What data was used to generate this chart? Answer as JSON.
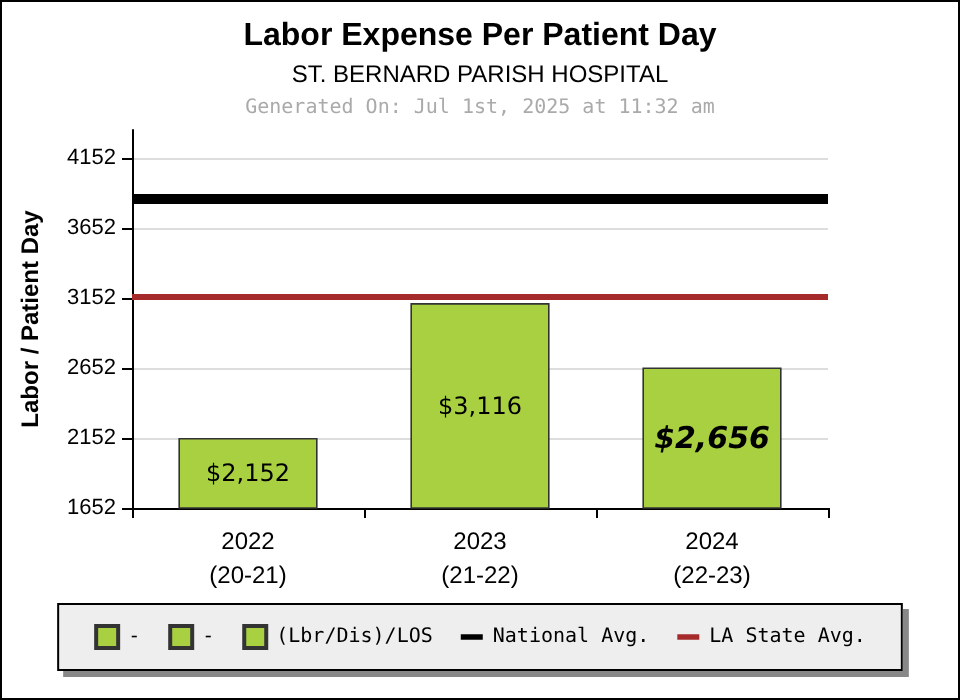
{
  "chart_data": {
    "type": "bar",
    "title": "Labor Expense Per Patient Day",
    "subtitle": "ST. BERNARD PARISH HOSPITAL",
    "annotations": [
      "Generated On: Jul 1st, 2025 at 11:32 am"
    ],
    "ylabel": "Labor / Patient Day",
    "categories": [
      "2022\n(20-21)",
      "2023\n(21-22)",
      "2024\n(22-23)"
    ],
    "series": [
      {
        "name": "-",
        "color": "#a8d040",
        "values": [
          2152,
          null,
          null
        ],
        "value_labels": [
          "$2,152",
          null,
          null
        ]
      },
      {
        "name": "-",
        "color": "#a8d040",
        "values": [
          null,
          3116,
          null
        ],
        "value_labels": [
          null,
          "$3,116",
          null
        ]
      },
      {
        "name": "(Lbr/Dis)/LOS",
        "color": "#a8d040",
        "values": [
          null,
          null,
          2656
        ],
        "value_labels": [
          null,
          null,
          "$2,656"
        ]
      }
    ],
    "ylim": [
      1652,
      4352
    ],
    "yticks": [
      1652,
      2152,
      2652,
      3152,
      3652,
      4152
    ],
    "ref_lines": [
      {
        "axis": "y",
        "value": 3860,
        "label": "National Avg.",
        "color": "#000000"
      },
      {
        "axis": "y",
        "value": 3160,
        "label": "LA State Avg.",
        "color": "#a52a2a"
      }
    ],
    "grid": "y",
    "legend": "bottom"
  }
}
